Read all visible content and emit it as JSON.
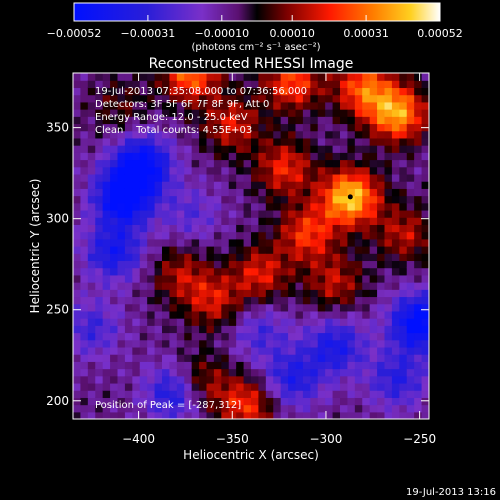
{
  "chart_data": {
    "type": "heatmap",
    "title": "Reconstructed RHESSI Image",
    "xlabel": "Heliocentric X (arcsec)",
    "ylabel": "Heliocentric Y (arcsec)",
    "xlim": [
      -435,
      -245
    ],
    "ylim": [
      190,
      380
    ],
    "xticks": [
      -400,
      -350,
      -300,
      -250
    ],
    "yticks": [
      200,
      250,
      300,
      350
    ],
    "colorbar": {
      "label": "(photons cm⁻² s⁻¹ asec⁻²)",
      "range": [
        -0.00052,
        0.00052
      ],
      "ticks": [
        "-0.00052",
        "-0.00031",
        "-0.00010",
        "0.00010",
        "0.00031",
        "0.00052"
      ],
      "tick_values": [
        -0.00052,
        -0.00031,
        -0.0001,
        0.0001,
        0.00031,
        0.00052
      ]
    },
    "annotations": [
      "19-Jul-2013 07:35:08.000 to 07:36:56.000",
      "Detectors: 3F 5F 6F 7F 8F 9F, Att 0",
      "Energy Range: 12.0 - 25.0 keV",
      "Clean    Total counts: 4.55E+03"
    ],
    "peak_label": "Position of Peak = [-287,312]",
    "peak": [
      -287,
      312
    ],
    "sources": [
      {
        "x": -287,
        "y": 312,
        "amp": 0.00052
      },
      {
        "x": -262,
        "y": 358,
        "amp": 0.00045
      },
      {
        "x": -280,
        "y": 372,
        "amp": 0.00035
      },
      {
        "x": -372,
        "y": 380,
        "amp": 0.00038
      },
      {
        "x": -318,
        "y": 375,
        "amp": 0.00033
      },
      {
        "x": -350,
        "y": 352,
        "amp": 0.00025
      },
      {
        "x": -322,
        "y": 328,
        "amp": 0.00028
      },
      {
        "x": -310,
        "y": 292,
        "amp": 0.0003
      },
      {
        "x": -335,
        "y": 270,
        "amp": 0.00026
      },
      {
        "x": -360,
        "y": 255,
        "amp": 0.00024
      },
      {
        "x": -378,
        "y": 270,
        "amp": 0.0002
      },
      {
        "x": -295,
        "y": 265,
        "amp": 0.00022
      },
      {
        "x": -258,
        "y": 292,
        "amp": 0.00022
      },
      {
        "x": -410,
        "y": 362,
        "amp": 0.00012
      },
      {
        "x": -368,
        "y": 210,
        "amp": 0.00026
      },
      {
        "x": -342,
        "y": 198,
        "amp": 0.0003
      },
      {
        "x": -408,
        "y": 312,
        "amp": -0.00048
      },
      {
        "x": -398,
        "y": 330,
        "amp": -0.00045
      },
      {
        "x": -413,
        "y": 282,
        "amp": -0.00032
      },
      {
        "x": -250,
        "y": 243,
        "amp": -0.00048
      },
      {
        "x": -380,
        "y": 205,
        "amp": -0.00035
      },
      {
        "x": -295,
        "y": 230,
        "amp": -0.0003
      },
      {
        "x": -318,
        "y": 212,
        "amp": -0.00028
      },
      {
        "x": -262,
        "y": 212,
        "amp": -0.00025
      },
      {
        "x": -335,
        "y": 238,
        "amp": -0.00018
      },
      {
        "x": -372,
        "y": 303,
        "amp": -0.00015
      },
      {
        "x": -425,
        "y": 240,
        "amp": -0.0002
      }
    ]
  },
  "footer": {
    "timestamp": "19-Jul-2013 13:16"
  }
}
